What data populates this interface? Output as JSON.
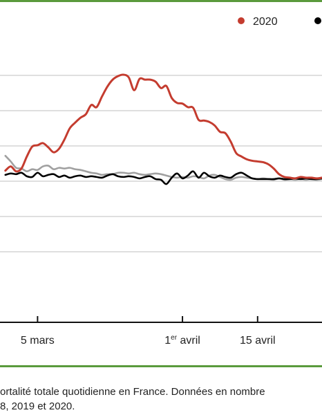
{
  "colors": {
    "accent": "#5a9a3c",
    "series_2020": "#c43c2f",
    "series_2019": "#000000",
    "series_2018": "#a0a0a0",
    "grid": "#cccccc",
    "axis": "#111111"
  },
  "caption": {
    "line1": "ortalité totale quotidienne en France. Données en nombre",
    "line2": "8, 2019 et 2020."
  },
  "chart_data": {
    "type": "line",
    "title": "",
    "xlabel": "",
    "ylabel": "",
    "x_ticks": [
      {
        "label": "5 mars",
        "day": 5
      },
      {
        "label": "1er avril",
        "prefix": "1",
        "sup": "er",
        "suffix": " avril",
        "day": 32
      },
      {
        "label": "15 avril",
        "day": 46
      }
    ],
    "xlim": [
      -2,
      58
    ],
    "ylim": [
      0,
      4000
    ],
    "y_gridlines": [
      1000,
      1500,
      2000,
      2500,
      3000,
      3500
    ],
    "legend": {
      "position": "top-right",
      "entries": [
        "2020"
      ]
    },
    "series": [
      {
        "name": "2020",
        "color": "#c43c2f",
        "x": [
          -1,
          0,
          1,
          2,
          3,
          4,
          5,
          6,
          7,
          8,
          9,
          10,
          11,
          12,
          13,
          14,
          15,
          16,
          17,
          18,
          19,
          20,
          21,
          22,
          23,
          24,
          25,
          26,
          27,
          28,
          29,
          30,
          31,
          32,
          33,
          34,
          35,
          36,
          37,
          38,
          39,
          40,
          41,
          42,
          43,
          44,
          45,
          46,
          47,
          48,
          49,
          50,
          51,
          52,
          53,
          54,
          55,
          56,
          57,
          58
        ],
        "y": [
          2150,
          2210,
          2140,
          2180,
          2350,
          2490,
          2510,
          2540,
          2480,
          2410,
          2460,
          2590,
          2750,
          2830,
          2900,
          2950,
          3080,
          3050,
          3200,
          3340,
          3440,
          3490,
          3510,
          3470,
          3290,
          3450,
          3440,
          3440,
          3410,
          3320,
          3350,
          3180,
          3110,
          3100,
          3050,
          3040,
          2870,
          2860,
          2840,
          2790,
          2700,
          2680,
          2560,
          2400,
          2350,
          2310,
          2290,
          2280,
          2270,
          2240,
          2180,
          2100,
          2060,
          2050,
          2040,
          2060,
          2050,
          2050,
          2040,
          2050
        ]
      },
      {
        "name": "",
        "color": "#000000",
        "x": [
          -1,
          0,
          1,
          2,
          3,
          4,
          5,
          6,
          7,
          8,
          9,
          10,
          11,
          12,
          13,
          14,
          15,
          16,
          17,
          18,
          19,
          20,
          21,
          22,
          23,
          24,
          25,
          26,
          27,
          28,
          29,
          30,
          31,
          32,
          33,
          34,
          35,
          36,
          37,
          38,
          39,
          40,
          41,
          42,
          43,
          44,
          45,
          46,
          47,
          48,
          49,
          50,
          51,
          52,
          53,
          54,
          55,
          56,
          57,
          58
        ],
        "y": [
          2090,
          2110,
          2100,
          2120,
          2070,
          2060,
          2120,
          2070,
          2090,
          2100,
          2060,
          2080,
          2050,
          2070,
          2080,
          2060,
          2070,
          2060,
          2050,
          2080,
          2100,
          2070,
          2060,
          2070,
          2060,
          2040,
          2060,
          2070,
          2030,
          2020,
          1960,
          2050,
          2110,
          2040,
          2080,
          2140,
          2050,
          2120,
          2070,
          2050,
          2080,
          2060,
          2050,
          2100,
          2120,
          2080,
          2040,
          2030,
          2030,
          2030,
          2030,
          2040,
          2030,
          2030,
          2040,
          2030,
          2040,
          2030,
          2030,
          2040
        ]
      },
      {
        "name": "",
        "color": "#a0a0a0",
        "x": [
          -1,
          0,
          1,
          2,
          3,
          4,
          5,
          6,
          7,
          8,
          9,
          10,
          11,
          12,
          13,
          14,
          15,
          16,
          17,
          18,
          19,
          20,
          21,
          22,
          23,
          24,
          25,
          26,
          27,
          28,
          29,
          30,
          31,
          32,
          33,
          34,
          35,
          36,
          37,
          38,
          39,
          40,
          41,
          42,
          43,
          44,
          45,
          46,
          47,
          48,
          49,
          50,
          51,
          52,
          53,
          54,
          55,
          56,
          57,
          58
        ],
        "y": [
          2360,
          2280,
          2190,
          2180,
          2140,
          2170,
          2160,
          2210,
          2220,
          2170,
          2190,
          2180,
          2190,
          2170,
          2160,
          2140,
          2120,
          2110,
          2090,
          2100,
          2100,
          2120,
          2120,
          2110,
          2120,
          2100,
          2090,
          2100,
          2110,
          2100,
          2080,
          2060,
          2050,
          2060,
          2050,
          2070,
          2060,
          2040,
          2080,
          2090,
          2060,
          2030,
          2020,
          2050,
          2060,
          2050,
          2040,
          2030,
          2040,
          2030,
          2020,
          2040,
          2020,
          2030,
          2020,
          2030,
          2020,
          2030,
          2020,
          2030
        ]
      }
    ]
  }
}
